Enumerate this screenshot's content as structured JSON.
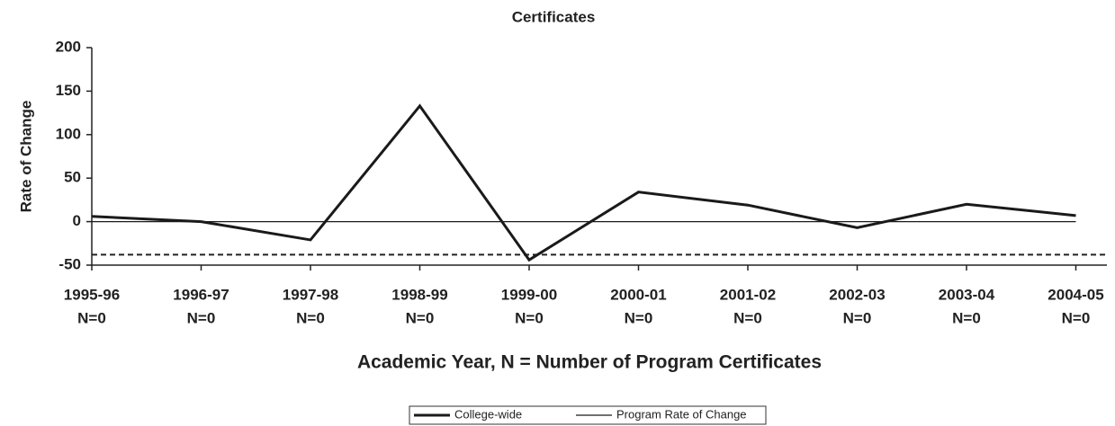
{
  "chart_data": {
    "type": "line",
    "title": "Certificates",
    "x_label": "Academic Year, N = Number of Program Certificates",
    "y_label": "Rate of Change",
    "categories": [
      "1995-96",
      "1996-97",
      "1997-98",
      "1998-99",
      "1999-00",
      "2000-01",
      "2001-02",
      "2002-03",
      "2003-04",
      "2004-05"
    ],
    "n_labels": [
      "N=0",
      "N=0",
      "N=0",
      "N=0",
      "N=0",
      "N=0",
      "N=0",
      "N=0",
      "N=0",
      "N=0"
    ],
    "series": [
      {
        "name": "College-wide",
        "color": "#1a1a1a",
        "values": [
          6,
          0,
          -21,
          133,
          -44,
          34,
          19,
          -7,
          20,
          7
        ]
      },
      {
        "name": "Program Rate of Change",
        "color": "#1a1a1a",
        "values": [
          0,
          0,
          0,
          0,
          0,
          0,
          0,
          0,
          0,
          0
        ]
      }
    ],
    "reference_line": -38,
    "ylim": [
      -50,
      200
    ],
    "yticks": [
      -50,
      0,
      50,
      100,
      150,
      200
    ]
  }
}
